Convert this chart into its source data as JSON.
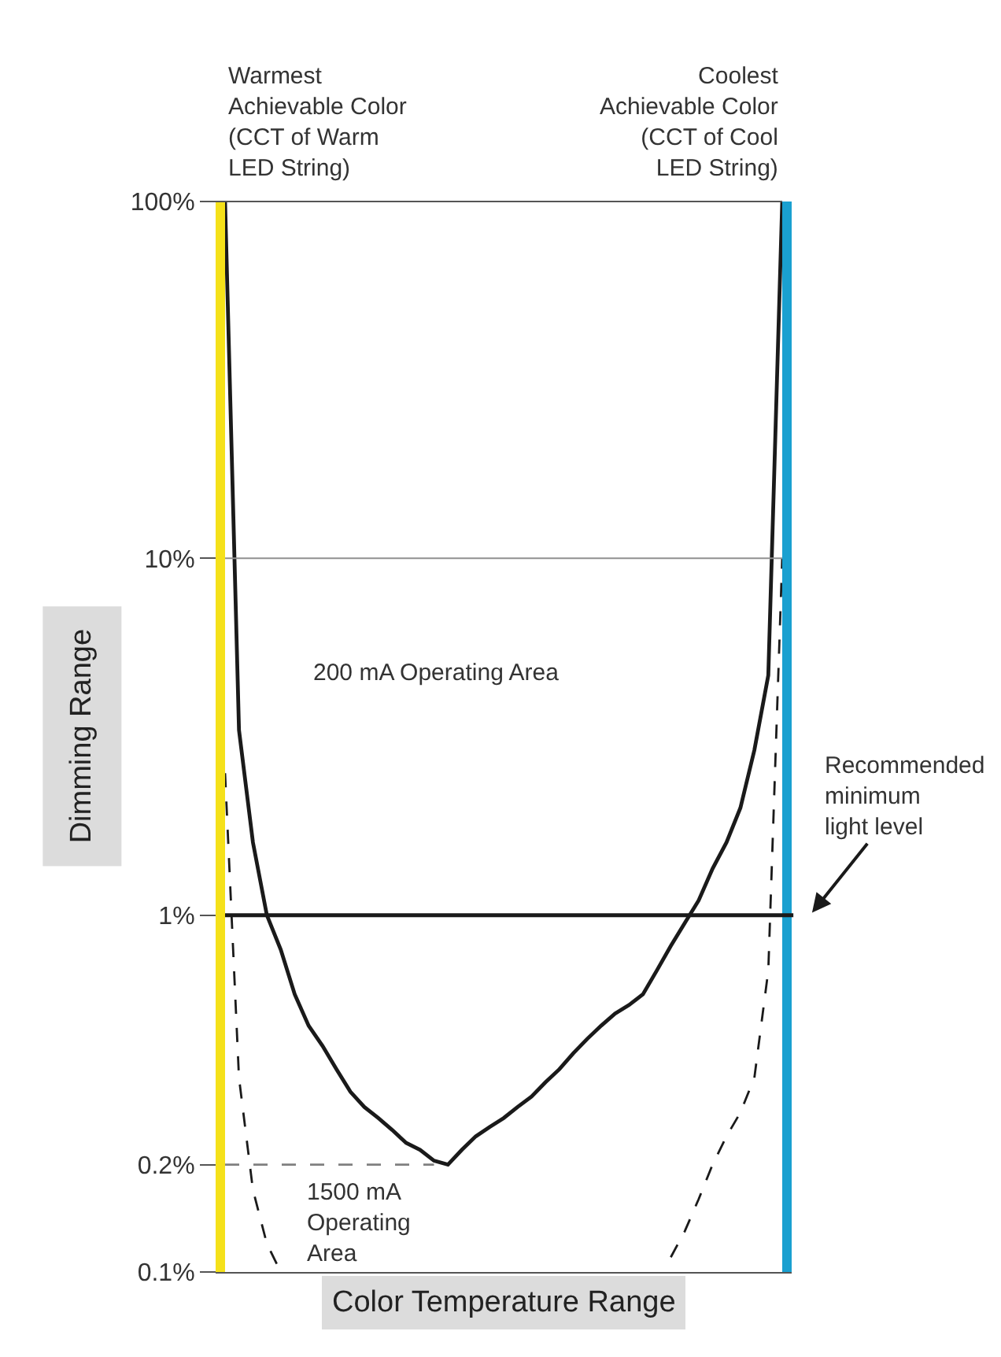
{
  "chart_data": {
    "type": "line",
    "xlabel": "Color Temperature Range",
    "ylabel": "Dimming Range",
    "log": true,
    "ylim": [
      0.1,
      100
    ],
    "marker": "none",
    "categories": [
      null,
      null,
      null,
      null,
      null,
      null,
      null,
      null,
      null,
      null,
      null,
      null,
      null,
      null,
      null,
      null,
      null,
      null,
      null,
      null,
      null,
      null,
      null,
      null,
      null,
      null,
      null,
      null,
      null,
      null,
      null,
      null,
      null,
      null,
      null,
      null,
      null,
      null,
      null,
      null,
      null
    ],
    "yticks": [
      {
        "value": 0.1,
        "label": "0.1%"
      },
      {
        "value": 0.2,
        "label": "0.2%"
      },
      {
        "value": 1,
        "label": "1%"
      },
      {
        "value": 10,
        "label": "10%"
      },
      {
        "value": 100,
        "label": "100%"
      }
    ],
    "series": [
      {
        "color": "#1a1a1a",
        "line_style": "solid",
        "values": [
          100,
          3.3,
          1.6,
          1.0,
          0.8,
          0.6,
          0.49,
          0.43,
          0.37,
          0.32,
          0.29,
          0.27,
          0.25,
          0.23,
          0.22,
          0.205,
          0.2,
          0.22,
          0.24,
          0.255,
          0.27,
          0.29,
          0.31,
          0.34,
          0.37,
          0.41,
          0.45,
          0.49,
          0.53,
          0.56,
          0.6,
          0.7,
          0.82,
          0.95,
          1.1,
          1.35,
          1.6,
          2.0,
          2.9,
          4.7,
          100
        ]
      },
      {
        "color": "#1a1a1a",
        "line_style": "dashed",
        "values": [
          2.5,
          0.35,
          0.17,
          0.12,
          0.1,
          null,
          null,
          null,
          null,
          null,
          null,
          null,
          null,
          null,
          null,
          null,
          null,
          null,
          null,
          null,
          null,
          null,
          null,
          null,
          null,
          null,
          null,
          null,
          null,
          null,
          null,
          null,
          null,
          null,
          null,
          null,
          null,
          null,
          null,
          null,
          null
        ]
      },
      {
        "color": "#1a1a1a",
        "line_style": "dashed",
        "values": [
          null,
          null,
          null,
          null,
          null,
          null,
          null,
          null,
          null,
          null,
          null,
          null,
          null,
          null,
          null,
          null,
          null,
          null,
          null,
          null,
          null,
          null,
          null,
          null,
          null,
          null,
          null,
          null,
          null,
          null,
          null,
          null,
          0.11,
          0.13,
          0.16,
          0.2,
          0.24,
          0.28,
          0.35,
          0.7,
          10
        ]
      },
      {
        "color": "#808080",
        "line_style": "dashed",
        "values": [
          0.2,
          0.2,
          0.2,
          0.2,
          0.2,
          0.2,
          0.2,
          0.2,
          0.2,
          0.2,
          0.2,
          0.2,
          0.2,
          0.2,
          0.2,
          0.2,
          null,
          null,
          null,
          null,
          null,
          null,
          null,
          null,
          null,
          null,
          null,
          null,
          null,
          null,
          null,
          null,
          null,
          null,
          null,
          null,
          null,
          null,
          null,
          null,
          null
        ]
      }
    ],
    "ref_lines": [
      {
        "axis": "y",
        "value": 10,
        "color": "#909090"
      },
      {
        "axis": "y",
        "value": 1,
        "label": "Recommended\nminimum\nlight level",
        "color": "#1a1a1a"
      }
    ],
    "annotations": [
      "Warmest\nAchievable Color\n(CCT of Warm\nLED String)",
      "Coolest\nAchievable Color\n(CCT of Cool\nLED String)",
      "200 mA Operating Area",
      "1500 mA\nOperating\nArea"
    ]
  }
}
